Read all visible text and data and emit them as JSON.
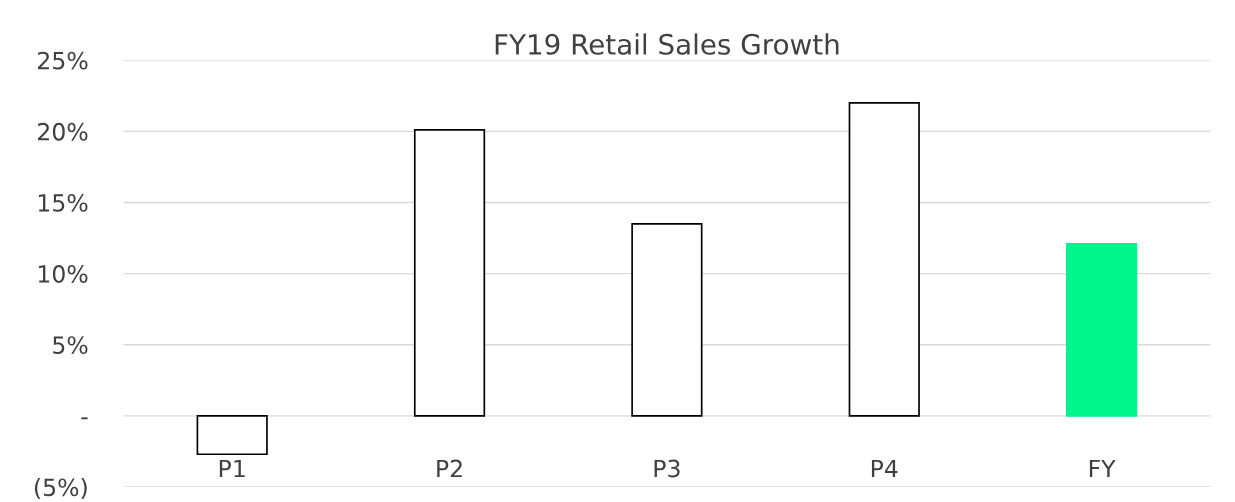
{
  "chart_data": {
    "type": "bar",
    "title": "FY19 Retail Sales Growth",
    "categories": [
      "P1",
      "P2",
      "P3",
      "P4",
      "FY"
    ],
    "values": [
      -2.7,
      20.1,
      13.5,
      22.0,
      12.1
    ],
    "colors": [
      "#ffffff",
      "#ffffff",
      "#ffffff",
      "#ffffff",
      "#00f58c"
    ],
    "ylim": [
      -5,
      25
    ],
    "yticks": [
      {
        "value": -5,
        "label": "(5%)"
      },
      {
        "value": 0,
        "label": "-"
      },
      {
        "value": 5,
        "label": "5%"
      },
      {
        "value": 10,
        "label": "10%"
      },
      {
        "value": 15,
        "label": "15%"
      },
      {
        "value": 20,
        "label": "20%"
      },
      {
        "value": 25,
        "label": "25%"
      }
    ],
    "grid": "y",
    "legend": false
  }
}
